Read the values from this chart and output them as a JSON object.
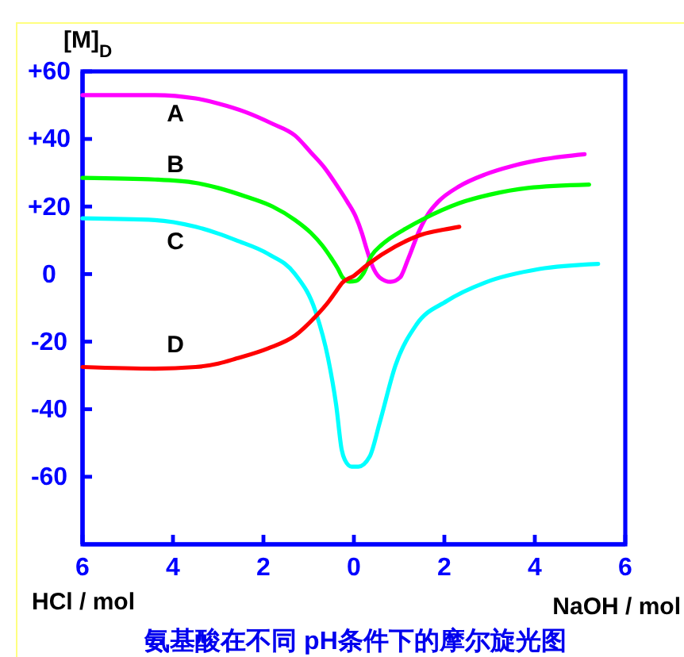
{
  "chart_data": {
    "type": "line",
    "title": "氨基酸在不同 pH条件下的摩尔旋光图",
    "xlabel": "HCl / mol",
    "ylabel": "[M]$_{D}$",
    "annotations": [
      "NaOH / mol"
    ],
    "xlim": [
      -6,
      6
    ],
    "xticks": [
      {
        "value": -6,
        "label": "6"
      },
      {
        "value": -4,
        "label": "4"
      },
      {
        "value": -2,
        "label": "2"
      },
      0,
      2,
      4,
      6
    ],
    "ylim": [
      -80,
      60
    ],
    "yticks": [
      {
        "value": 60,
        "label": "+60"
      },
      {
        "value": 40,
        "label": "+40"
      },
      {
        "value": 20,
        "label": "+20"
      },
      0,
      -20,
      -40,
      -60
    ],
    "grid": false,
    "series": [
      {
        "name": "A",
        "color": "#ff00ff",
        "x": [
          -6,
          -4.4,
          -3.5,
          -3,
          -2.4,
          -1.8,
          -1.3,
          -0.95,
          -0.65,
          -0.39,
          -0.15,
          0.04,
          0.18,
          0.28,
          0.39,
          0.57,
          0.81,
          1.02,
          1.2,
          1.45,
          1.65,
          1.87,
          2.33,
          2.9,
          3.5,
          4.2,
          5.1
        ],
        "values": [
          53,
          53,
          52,
          50.5,
          48,
          44.5,
          41,
          36,
          31.5,
          26.5,
          21.5,
          17,
          12,
          7.5,
          3,
          -1,
          -2.3,
          -1,
          4.5,
          13,
          18,
          21.5,
          26,
          29.5,
          32,
          34,
          35.5
        ]
      },
      {
        "name": "B",
        "color": "#00ff00",
        "x": [
          -6,
          -4.4,
          -3.5,
          -3,
          -2.4,
          -1.8,
          -1.3,
          -0.95,
          -0.7,
          -0.49,
          -0.35,
          -0.25,
          -0.1,
          0.05,
          0.2,
          0.39,
          0.6,
          0.81,
          1.15,
          1.52,
          2.33,
          3,
          3.85,
          5.2
        ],
        "values": [
          28.5,
          28,
          27,
          25.5,
          23,
          20,
          16,
          12.2,
          8.5,
          4.5,
          1.5,
          -1,
          -2.2,
          -2,
          0,
          5.5,
          8.5,
          10.7,
          13.5,
          16.2,
          21,
          23.5,
          25.5,
          26.5
        ]
      },
      {
        "name": "C",
        "color": "#00ffff",
        "x": [
          -6,
          -4.4,
          -3.5,
          -3,
          -2.6,
          -1.9,
          -1.3,
          -0.85,
          -0.57,
          -0.39,
          -0.27,
          -0.2,
          -0.05,
          0.1,
          0.35,
          0.57,
          0.92,
          1.38,
          2.05,
          2.9,
          4.1,
          5.4
        ],
        "values": [
          16.5,
          16,
          14,
          12,
          10,
          6,
          0,
          -11,
          -25,
          -39,
          -52,
          -55,
          -57,
          -57,
          -54,
          -44,
          -27,
          -15,
          -8,
          -2.5,
          1.5,
          3
        ]
      },
      {
        "name": "D",
        "color": "#ff0000",
        "x": [
          -6,
          -4.4,
          -3.5,
          -3,
          -2.6,
          -1.9,
          -1.3,
          -0.85,
          -0.55,
          -0.42,
          -0.25,
          0,
          0.32,
          0.92,
          1.52,
          2,
          2.33
        ],
        "values": [
          -27.5,
          -28,
          -27.5,
          -26.5,
          -25,
          -22,
          -18.2,
          -12.6,
          -8,
          -5.6,
          -2.5,
          -0.5,
          3,
          8.2,
          11.8,
          13.2,
          14
        ]
      }
    ]
  }
}
